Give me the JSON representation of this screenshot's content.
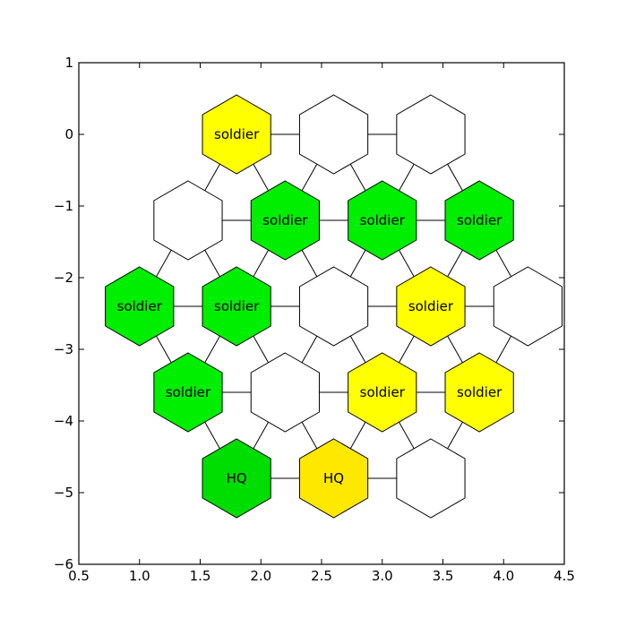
{
  "chart_data": {
    "type": "scatter",
    "xlim": [
      0.5,
      4.5
    ],
    "ylim": [
      -6,
      1
    ],
    "x_ticks": [
      "0.5",
      "1.0",
      "1.5",
      "2.0",
      "2.5",
      "3.0",
      "3.5",
      "4.0",
      "4.5"
    ],
    "y_ticks": [
      "1",
      "0",
      "−1",
      "−2",
      "−3",
      "−4",
      "−5",
      "−6"
    ],
    "grid": false,
    "hexagons": [
      {
        "x": 1.8,
        "y": 0.0,
        "label": "soldier",
        "color": "#ffff00"
      },
      {
        "x": 2.6,
        "y": 0.0,
        "label": "",
        "color": "#ffffff"
      },
      {
        "x": 3.4,
        "y": 0.0,
        "label": "",
        "color": "#ffffff"
      },
      {
        "x": 1.4,
        "y": -1.2,
        "label": "",
        "color": "#ffffff"
      },
      {
        "x": 2.2,
        "y": -1.2,
        "label": "soldier",
        "color": "#00ee00"
      },
      {
        "x": 3.0,
        "y": -1.2,
        "label": "soldier",
        "color": "#00ee00"
      },
      {
        "x": 3.8,
        "y": -1.2,
        "label": "soldier",
        "color": "#00ee00"
      },
      {
        "x": 1.0,
        "y": -2.4,
        "label": "soldier",
        "color": "#00ee00"
      },
      {
        "x": 1.8,
        "y": -2.4,
        "label": "soldier",
        "color": "#00ee00"
      },
      {
        "x": 2.6,
        "y": -2.4,
        "label": "",
        "color": "#ffffff"
      },
      {
        "x": 3.4,
        "y": -2.4,
        "label": "soldier",
        "color": "#ffff00"
      },
      {
        "x": 4.2,
        "y": -2.4,
        "label": "",
        "color": "#ffffff"
      },
      {
        "x": 1.4,
        "y": -3.6,
        "label": "soldier",
        "color": "#00ee00"
      },
      {
        "x": 2.2,
        "y": -3.6,
        "label": "",
        "color": "#ffffff"
      },
      {
        "x": 3.0,
        "y": -3.6,
        "label": "soldier",
        "color": "#ffff00"
      },
      {
        "x": 3.8,
        "y": -3.6,
        "label": "soldier",
        "color": "#ffff00"
      },
      {
        "x": 1.8,
        "y": -4.8,
        "label": "HQ",
        "color": "#00dd00"
      },
      {
        "x": 2.6,
        "y": -4.8,
        "label": "HQ",
        "color": "#ffe800"
      },
      {
        "x": 3.4,
        "y": -4.8,
        "label": "",
        "color": "#ffffff"
      }
    ],
    "edges": [
      [
        0,
        1
      ],
      [
        1,
        2
      ],
      [
        3,
        4
      ],
      [
        4,
        5
      ],
      [
        5,
        6
      ],
      [
        7,
        8
      ],
      [
        8,
        9
      ],
      [
        9,
        10
      ],
      [
        10,
        11
      ],
      [
        12,
        13
      ],
      [
        13,
        14
      ],
      [
        14,
        15
      ],
      [
        16,
        17
      ],
      [
        17,
        18
      ],
      [
        0,
        3
      ],
      [
        0,
        4
      ],
      [
        1,
        4
      ],
      [
        1,
        5
      ],
      [
        2,
        5
      ],
      [
        2,
        6
      ],
      [
        3,
        7
      ],
      [
        3,
        8
      ],
      [
        4,
        8
      ],
      [
        4,
        9
      ],
      [
        5,
        9
      ],
      [
        5,
        10
      ],
      [
        6,
        10
      ],
      [
        6,
        11
      ],
      [
        7,
        12
      ],
      [
        8,
        12
      ],
      [
        8,
        13
      ],
      [
        9,
        13
      ],
      [
        9,
        14
      ],
      [
        10,
        14
      ],
      [
        10,
        15
      ],
      [
        11,
        15
      ],
      [
        12,
        16
      ],
      [
        13,
        16
      ],
      [
        13,
        17
      ],
      [
        14,
        17
      ],
      [
        14,
        18
      ],
      [
        15,
        18
      ]
    ]
  }
}
